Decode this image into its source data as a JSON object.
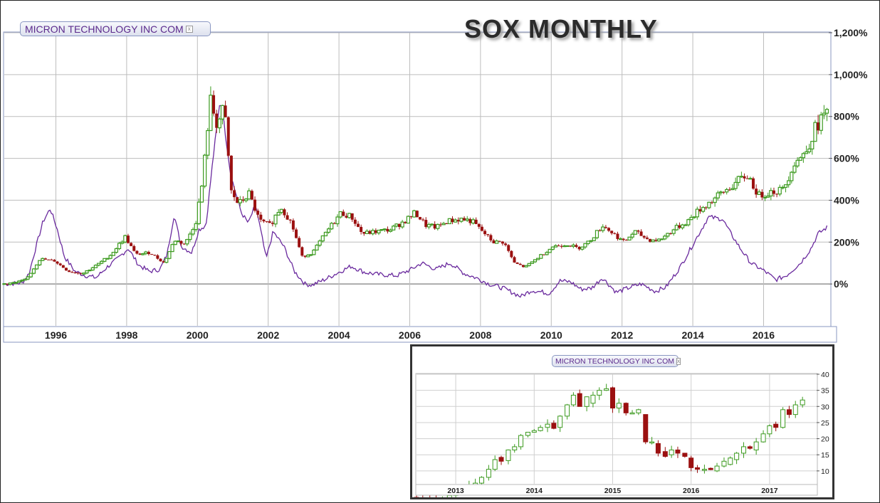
{
  "title": "SOX MONTHLY",
  "legend_label": "MICRON TECHNOLOGY INC COM",
  "legend_close_symbol": "x",
  "colors": {
    "up": "#3c9a1f",
    "down": "#9b1010",
    "line": "#6a2a9e",
    "grid": "#bdbdbd",
    "frame": "#8a97c2"
  },
  "chart_data": [
    {
      "type": "line",
      "name": "main",
      "title": "SOX MONTHLY",
      "ylim": [
        -200,
        1200
      ],
      "yticks": [
        0,
        200,
        400,
        600,
        800,
        1000,
        1200
      ],
      "ytick_labels": [
        "0%",
        "200%",
        "400%",
        "600%",
        "800%",
        "1,000%",
        "1,200%"
      ],
      "xlim": [
        1994.3,
        2017.6
      ],
      "xticks": [
        1996,
        1998,
        2000,
        2002,
        2004,
        2006,
        2008,
        2010,
        2012,
        2014,
        2016
      ],
      "xtick_labels": [
        "1996",
        "1998",
        "2000",
        "2002",
        "2004",
        "2006",
        "2008",
        "2010",
        "2012",
        "2014",
        "2016"
      ],
      "grid": true,
      "series": [
        {
          "label": "MICRON TECHNOLOGY INC COM",
          "style": "line",
          "points": [
            [
              1994.3,
              0
            ],
            [
              1994.8,
              5
            ],
            [
              1995.0,
              50
            ],
            [
              1995.2,
              180
            ],
            [
              1995.4,
              300
            ],
            [
              1995.6,
              360
            ],
            [
              1995.8,
              260
            ],
            [
              1996.0,
              130
            ],
            [
              1996.3,
              60
            ],
            [
              1996.6,
              40
            ],
            [
              1996.9,
              30
            ],
            [
              1997.2,
              80
            ],
            [
              1997.5,
              120
            ],
            [
              1997.8,
              170
            ],
            [
              1998.1,
              90
            ],
            [
              1998.4,
              60
            ],
            [
              1998.7,
              70
            ],
            [
              1998.9,
              140
            ],
            [
              1999.1,
              330
            ],
            [
              1999.3,
              180
            ],
            [
              1999.6,
              150
            ],
            [
              1999.8,
              260
            ],
            [
              2000.0,
              280
            ],
            [
              2000.2,
              600
            ],
            [
              2000.4,
              880
            ],
            [
              2000.5,
              780
            ],
            [
              2000.7,
              520
            ],
            [
              2001.0,
              340
            ],
            [
              2001.2,
              290
            ],
            [
              2001.4,
              380
            ],
            [
              2001.6,
              210
            ],
            [
              2001.7,
              120
            ],
            [
              2001.9,
              250
            ],
            [
              2002.2,
              180
            ],
            [
              2002.5,
              60
            ],
            [
              2002.8,
              0
            ],
            [
              2003.0,
              -5
            ],
            [
              2003.4,
              25
            ],
            [
              2003.8,
              60
            ],
            [
              2004.1,
              85
            ],
            [
              2004.5,
              55
            ],
            [
              2004.9,
              45
            ],
            [
              2005.4,
              40
            ],
            [
              2005.8,
              70
            ],
            [
              2006.1,
              100
            ],
            [
              2006.5,
              70
            ],
            [
              2006.9,
              100
            ],
            [
              2007.3,
              50
            ],
            [
              2007.7,
              25
            ],
            [
              2008.0,
              0
            ],
            [
              2008.4,
              -20
            ],
            [
              2008.9,
              -60
            ],
            [
              2009.2,
              -30
            ],
            [
              2009.7,
              -45
            ],
            [
              2010.0,
              15
            ],
            [
              2010.3,
              10
            ],
            [
              2010.6,
              -25
            ],
            [
              2010.9,
              -20
            ],
            [
              2011.2,
              30
            ],
            [
              2011.6,
              -40
            ],
            [
              2012.0,
              -15
            ],
            [
              2012.3,
              0
            ],
            [
              2012.7,
              -35
            ],
            [
              2013.0,
              -15
            ],
            [
              2013.4,
              80
            ],
            [
              2013.8,
              200
            ],
            [
              2014.2,
              320
            ],
            [
              2014.6,
              310
            ],
            [
              2014.8,
              250
            ],
            [
              2015.1,
              170
            ],
            [
              2015.4,
              100
            ],
            [
              2015.8,
              60
            ],
            [
              2016.1,
              20
            ],
            [
              2016.4,
              40
            ],
            [
              2016.8,
              100
            ],
            [
              2017.1,
              170
            ],
            [
              2017.3,
              240
            ],
            [
              2017.55,
              270
            ]
          ]
        },
        {
          "label": "SOX",
          "style": "candlestick",
          "points": [
            [
              1994.3,
              0
            ],
            [
              1994.7,
              5
            ],
            [
              1995.0,
              20
            ],
            [
              1995.4,
              120
            ],
            [
              1995.8,
              110
            ],
            [
              1996.2,
              60
            ],
            [
              1996.6,
              50
            ],
            [
              1997.0,
              90
            ],
            [
              1997.4,
              140
            ],
            [
              1997.8,
              225
            ],
            [
              1998.1,
              140
            ],
            [
              1998.5,
              150
            ],
            [
              1998.9,
              100
            ],
            [
              1999.2,
              210
            ],
            [
              1999.5,
              190
            ],
            [
              1999.8,
              300
            ],
            [
              2000.0,
              500
            ],
            [
              2000.2,
              880
            ],
            [
              2000.4,
              760
            ],
            [
              2000.6,
              840
            ],
            [
              2000.8,
              440
            ],
            [
              2001.0,
              380
            ],
            [
              2001.3,
              430
            ],
            [
              2001.6,
              300
            ],
            [
              2001.9,
              280
            ],
            [
              2002.2,
              370
            ],
            [
              2002.5,
              290
            ],
            [
              2002.8,
              130
            ],
            [
              2003.1,
              150
            ],
            [
              2003.5,
              250
            ],
            [
              2003.9,
              340
            ],
            [
              2004.2,
              320
            ],
            [
              2004.5,
              240
            ],
            [
              2004.9,
              250
            ],
            [
              2005.3,
              260
            ],
            [
              2005.7,
              300
            ],
            [
              2006.0,
              340
            ],
            [
              2006.3,
              280
            ],
            [
              2006.6,
              270
            ],
            [
              2006.9,
              300
            ],
            [
              2007.3,
              310
            ],
            [
              2007.6,
              300
            ],
            [
              2007.9,
              250
            ],
            [
              2008.2,
              200
            ],
            [
              2008.5,
              200
            ],
            [
              2008.8,
              100
            ],
            [
              2009.1,
              80
            ],
            [
              2009.5,
              130
            ],
            [
              2009.9,
              180
            ],
            [
              2010.3,
              190
            ],
            [
              2010.6,
              170
            ],
            [
              2010.9,
              200
            ],
            [
              2011.3,
              280
            ],
            [
              2011.6,
              240
            ],
            [
              2011.9,
              200
            ],
            [
              2012.2,
              250
            ],
            [
              2012.6,
              210
            ],
            [
              2012.9,
              210
            ],
            [
              2013.3,
              260
            ],
            [
              2013.7,
              300
            ],
            [
              2014.0,
              350
            ],
            [
              2014.4,
              400
            ],
            [
              2014.8,
              450
            ],
            [
              2015.2,
              500
            ],
            [
              2015.4,
              520
            ],
            [
              2015.7,
              420
            ],
            [
              2016.0,
              440
            ],
            [
              2016.4,
              450
            ],
            [
              2016.7,
              580
            ],
            [
              2017.0,
              620
            ],
            [
              2017.3,
              740
            ],
            [
              2017.55,
              810
            ]
          ]
        }
      ]
    },
    {
      "type": "bar",
      "name": "inset",
      "subtype": "candlestick",
      "legend": "MICRON TECHNOLOGY INC COM",
      "ylim": [
        0,
        40
      ],
      "yticks": [
        10,
        15,
        20,
        25,
        30,
        35,
        40
      ],
      "ytick_labels": [
        "10",
        "15",
        "20",
        "25",
        "30",
        "35",
        "40"
      ],
      "xlim": [
        2012.5,
        2017.6
      ],
      "xticks": [
        2013,
        2014,
        2015,
        2016,
        2017
      ],
      "xtick_labels": [
        "2013",
        "2014",
        "2015",
        "2016",
        "2017"
      ],
      "grid": true,
      "candles": [
        [
          2012.5,
          1.8,
          1.7
        ],
        [
          2012.58,
          1.7,
          1.6
        ],
        [
          2012.67,
          1.6,
          1.3
        ],
        [
          2012.75,
          1.3,
          1.1
        ],
        [
          2012.83,
          1.1,
          1.5
        ],
        [
          2012.92,
          1.5,
          2.4
        ],
        [
          2013.0,
          2.4,
          3.5
        ],
        [
          2013.08,
          3.5,
          4.5
        ],
        [
          2013.17,
          4.5,
          5.5
        ],
        [
          2013.25,
          5.5,
          6.2
        ],
        [
          2013.33,
          6.2,
          8
        ],
        [
          2013.42,
          8,
          10.5
        ],
        [
          2013.5,
          10.5,
          13.5
        ],
        [
          2013.58,
          14.2,
          13
        ],
        [
          2013.67,
          13.2,
          16.5
        ],
        [
          2013.75,
          16.5,
          17.5
        ],
        [
          2013.83,
          17.5,
          21
        ],
        [
          2013.92,
          21,
          22
        ],
        [
          2014.0,
          22,
          22.5
        ],
        [
          2014.08,
          22.5,
          23.5
        ],
        [
          2014.17,
          23.5,
          24.5
        ],
        [
          2014.25,
          24.8,
          23.2
        ],
        [
          2014.33,
          23.5,
          27
        ],
        [
          2014.42,
          27,
          30.5
        ],
        [
          2014.5,
          30.5,
          33.5
        ],
        [
          2014.58,
          34,
          30
        ],
        [
          2014.67,
          30,
          33
        ],
        [
          2014.75,
          31,
          33.5
        ],
        [
          2014.83,
          33.5,
          35
        ],
        [
          2014.92,
          35,
          35.5
        ],
        [
          2015.0,
          35.8,
          29.5
        ],
        [
          2015.08,
          29.5,
          31
        ],
        [
          2015.17,
          31,
          28
        ],
        [
          2015.25,
          28,
          28
        ],
        [
          2015.33,
          28,
          29
        ],
        [
          2015.42,
          27.5,
          19
        ],
        [
          2015.5,
          19,
          19
        ],
        [
          2015.58,
          18.5,
          15.5
        ],
        [
          2015.67,
          16,
          14.5
        ],
        [
          2015.75,
          15,
          16.5
        ],
        [
          2015.83,
          16.5,
          15.5
        ],
        [
          2015.92,
          15.5,
          14.5
        ],
        [
          2016.0,
          14,
          11
        ],
        [
          2016.08,
          11,
          10.5
        ],
        [
          2016.17,
          10.5,
          10.5
        ],
        [
          2016.25,
          10.8,
          10.4
        ],
        [
          2016.33,
          10,
          11.5
        ],
        [
          2016.42,
          11.5,
          13
        ],
        [
          2016.5,
          12,
          14
        ],
        [
          2016.58,
          13.5,
          15.5
        ],
        [
          2016.67,
          15.5,
          17.5
        ],
        [
          2016.75,
          17.5,
          17
        ],
        [
          2016.83,
          16.5,
          19
        ],
        [
          2016.92,
          19,
          21.5
        ],
        [
          2017.0,
          21.5,
          24
        ],
        [
          2017.08,
          24.5,
          23.5
        ],
        [
          2017.17,
          23.5,
          29
        ],
        [
          2017.25,
          29,
          27.5
        ],
        [
          2017.33,
          27.5,
          30.5
        ],
        [
          2017.42,
          30.5,
          32
        ]
      ]
    }
  ]
}
